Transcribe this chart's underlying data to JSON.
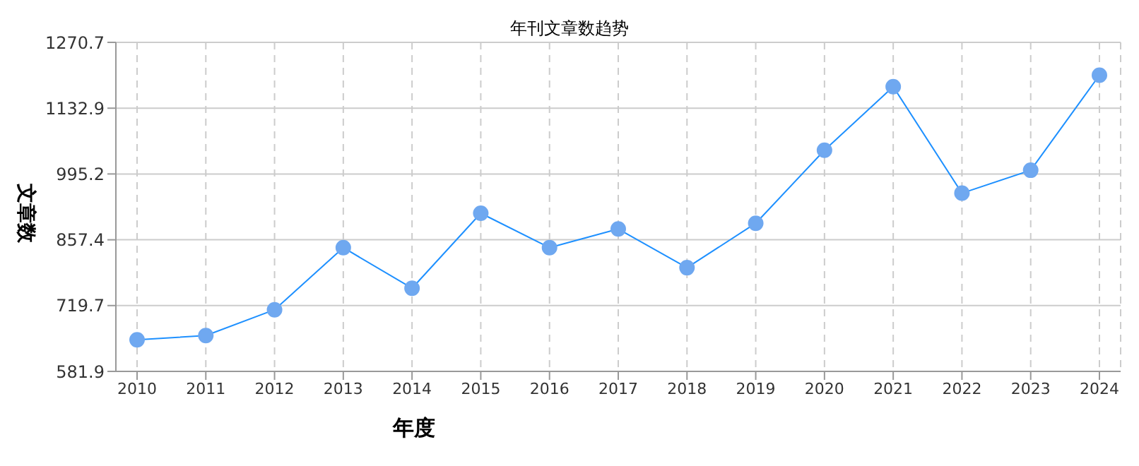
{
  "chart_data": {
    "type": "line",
    "title": "年刊文章数趋势",
    "xlabel": "年度",
    "ylabel": "文章数",
    "categories": [
      "2010",
      "2011",
      "2012",
      "2013",
      "2014",
      "2015",
      "2016",
      "2017",
      "2018",
      "2019",
      "2020",
      "2021",
      "2022",
      "2023",
      "2024"
    ],
    "series": [
      {
        "color": "#1e90ff",
        "values": [
          648,
          657,
          711,
          841,
          756,
          913,
          841,
          880,
          799,
          892,
          1045,
          1178,
          955,
          1003,
          1202
        ]
      }
    ],
    "ylim": [
      581.9,
      1270.7
    ],
    "yticks": [
      581.9,
      719.7,
      857.4,
      995.2,
      1132.9,
      1270.7
    ],
    "grid": true,
    "marker": "circle",
    "line_style": "solid"
  }
}
